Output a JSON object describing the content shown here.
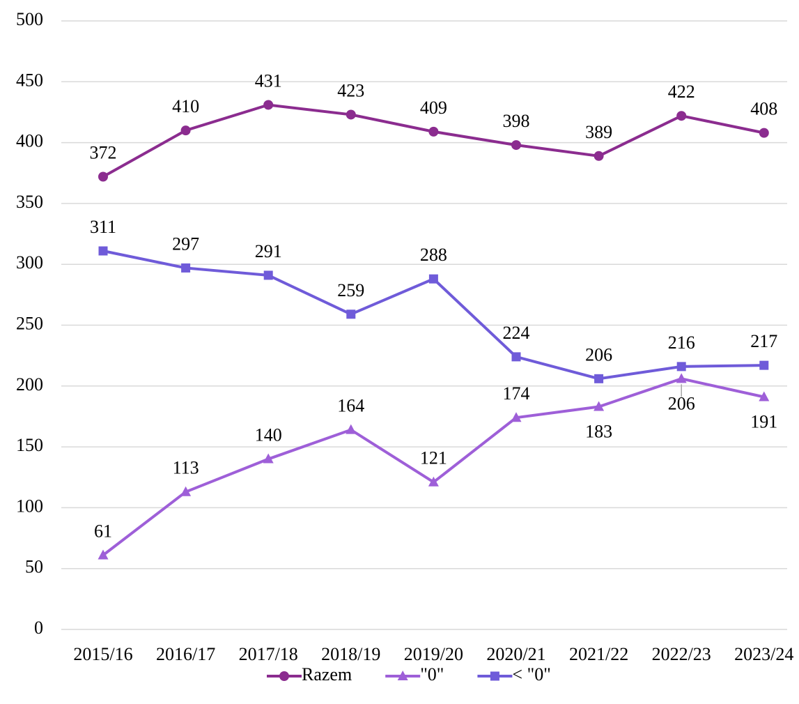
{
  "chart_data": {
    "type": "line",
    "categories": [
      "2015/16",
      "2016/17",
      "2017/18",
      "2018/19",
      "2019/20",
      "2020/21",
      "2021/22",
      "2022/23",
      "2023/24"
    ],
    "series": [
      {
        "name": "Razem",
        "color": "#8b2c8f",
        "marker": "circle",
        "values": [
          372,
          410,
          431,
          423,
          409,
          398,
          389,
          422,
          408
        ]
      },
      {
        "name": "\"0\"",
        "color": "#9e5fd8",
        "marker": "triangle",
        "values": [
          61,
          113,
          140,
          164,
          121,
          174,
          183,
          206,
          191
        ]
      },
      {
        "name": "< \"0\"",
        "color": "#6f5bd9",
        "marker": "square",
        "values": [
          311,
          297,
          291,
          259,
          288,
          224,
          206,
          216,
          217
        ]
      }
    ],
    "ylim": [
      0,
      500
    ],
    "yticks": [
      0,
      50,
      100,
      150,
      200,
      250,
      300,
      350,
      400,
      450,
      500
    ],
    "grid": true,
    "legend": "bottom"
  }
}
